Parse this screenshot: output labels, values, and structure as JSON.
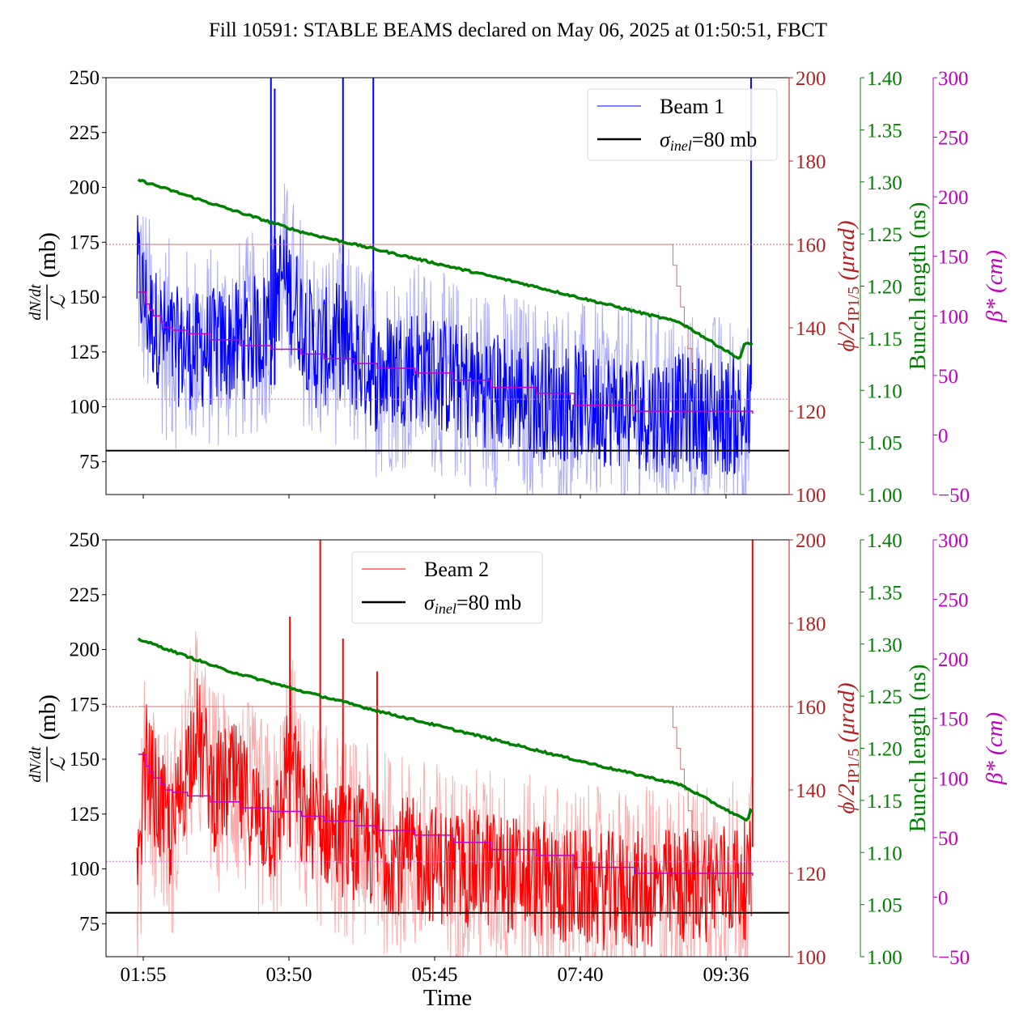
{
  "chart_data": {
    "type": "line",
    "title": "Fill 10591: STABLE BEAMS declared on May 06, 2025 at 01:50:51, FBCT",
    "xlabel": "Time",
    "x_ticks": [
      "01:55",
      "03:50",
      "05:45",
      "07:40",
      "09:36"
    ],
    "x_range_minutes": [
      1.5,
      10.4
    ],
    "data_span": {
      "start": "01:50",
      "end": "09:56"
    },
    "axes": {
      "left": {
        "label": "dN/dt / L (mb)",
        "label_num": "dN/dt",
        "label_den": "ℒ",
        "label_unit": "(mb)",
        "ylim": [
          60,
          250
        ],
        "ticks": [
          75,
          100,
          125,
          150,
          175,
          200,
          225,
          250
        ],
        "color": "#000000"
      },
      "crossing": {
        "label": "ϕ/2",
        "label_sub": "IP1/5",
        "label_unit": "(μrad)",
        "ylim": [
          100,
          200
        ],
        "ticks": [
          100,
          120,
          140,
          160,
          180,
          200
        ],
        "color": "#b22222"
      },
      "bunch": {
        "label": "Bunch length (ns)",
        "ylim": [
          1.0,
          1.4
        ],
        "ticks": [
          "1.00",
          "1.05",
          "1.10",
          "1.15",
          "1.20",
          "1.25",
          "1.30",
          "1.35",
          "1.40"
        ],
        "color": "#008000"
      },
      "beta": {
        "label": "β*",
        "label_unit": "(cm)",
        "ylim": [
          -50,
          300
        ],
        "ticks": [
          "−50",
          "0",
          "50",
          "100",
          "150",
          "200",
          "250",
          "300"
        ],
        "color": "#c000c0"
      }
    },
    "panels": [
      {
        "name": "beam1",
        "legend": {
          "series": "Beam 1",
          "reference": "σ",
          "reference_sub": "inel",
          "reference_value": "=80 mb",
          "position": "upper-right"
        },
        "series_color": "#0000ff",
        "series_light": "#aaaaff",
        "reference_sigma_inel_mb": 80,
        "mean_profile": {
          "t_hours": [
            1.85,
            2.0,
            2.3,
            2.6,
            3.2,
            3.5,
            3.75,
            4.2,
            4.5,
            5.0,
            5.5,
            6.0,
            6.5,
            7.0,
            7.5,
            8.0,
            8.5,
            9.0,
            9.5,
            9.9
          ],
          "values": [
            160,
            140,
            128,
            125,
            130,
            135,
            160,
            125,
            130,
            115,
            120,
            112,
            108,
            104,
            102,
            100,
            98,
            97,
            96,
            95
          ]
        },
        "spikes": [
          {
            "t": 3.6,
            "value": 250
          },
          {
            "t": 3.65,
            "value": 245
          },
          {
            "t": 4.55,
            "value": 250
          },
          {
            "t": 4.95,
            "value": 250
          },
          {
            "t": 9.93,
            "value": 250
          }
        ],
        "crossing_angle_urad": {
          "t": [
            1.85,
            8.85,
            8.9,
            8.95,
            9.0,
            9.05,
            9.1,
            9.15,
            9.2,
            9.95
          ],
          "values": [
            160,
            160,
            155,
            150,
            145,
            140,
            135,
            130,
            120,
            120
          ]
        },
        "crossing_reference_urad": 160,
        "beta_star_cm": {
          "t": [
            1.85,
            1.95,
            2.0,
            2.05,
            2.15,
            2.2,
            2.3,
            2.5,
            2.8,
            3.2,
            3.6,
            4.0,
            4.3,
            4.7,
            5.0,
            5.5,
            6.0,
            6.5,
            7.1,
            7.6,
            8.4,
            9.95
          ],
          "values": [
            120,
            110,
            105,
            100,
            95,
            90,
            88,
            85,
            80,
            75,
            72,
            68,
            64,
            60,
            56,
            52,
            46,
            40,
            35,
            25,
            20,
            18
          ]
        },
        "beta_reference_cm": 30,
        "bunch_length_ns": {
          "t": [
            1.85,
            3.0,
            4.0,
            5.0,
            6.0,
            7.0,
            8.0,
            9.0,
            9.78,
            9.85,
            9.95
          ],
          "values": [
            1.302,
            1.275,
            1.252,
            1.235,
            1.218,
            1.201,
            1.183,
            1.165,
            1.13,
            1.145,
            1.145
          ]
        }
      },
      {
        "name": "beam2",
        "legend": {
          "series": "Beam 2",
          "reference": "σ",
          "reference_sub": "inel",
          "reference_value": "=80 mb",
          "position": "upper-center"
        },
        "series_color": "#ff0000",
        "series_light": "#ffaaaa",
        "reference_sigma_inel_mb": 80,
        "mean_profile": {
          "t_hours": [
            1.85,
            1.95,
            2.1,
            2.3,
            2.6,
            2.85,
            3.1,
            3.4,
            3.7,
            3.85,
            4.0,
            4.5,
            5.0,
            5.5,
            6.0,
            6.5,
            7.0,
            7.5,
            8.0,
            8.5,
            9.0,
            9.5,
            9.9
          ],
          "values": [
            90,
            150,
            130,
            115,
            165,
            135,
            140,
            125,
            118,
            160,
            125,
            115,
            108,
            105,
            100,
            100,
            96,
            92,
            90,
            90,
            92,
            95,
            95
          ]
        },
        "spikes": [
          {
            "t": 3.85,
            "value": 215
          },
          {
            "t": 4.25,
            "value": 250
          },
          {
            "t": 4.55,
            "value": 205
          },
          {
            "t": 5.0,
            "value": 190
          },
          {
            "t": 9.95,
            "value": 250
          }
        ],
        "crossing_angle_urad": {
          "t": [
            1.85,
            8.85,
            8.9,
            8.95,
            9.0,
            9.05,
            9.1,
            9.15,
            9.2,
            9.95
          ],
          "values": [
            160,
            160,
            155,
            150,
            145,
            140,
            135,
            130,
            120,
            120
          ]
        },
        "crossing_reference_urad": 160,
        "beta_star_cm": {
          "t": [
            1.85,
            1.95,
            2.0,
            2.05,
            2.15,
            2.2,
            2.3,
            2.5,
            2.8,
            3.2,
            3.6,
            4.0,
            4.3,
            4.7,
            5.0,
            5.5,
            6.0,
            6.5,
            7.1,
            7.6,
            8.4,
            9.95
          ],
          "values": [
            120,
            110,
            105,
            100,
            95,
            90,
            88,
            85,
            80,
            75,
            72,
            68,
            64,
            60,
            56,
            52,
            46,
            40,
            35,
            25,
            20,
            18
          ]
        },
        "beta_reference_cm": 30,
        "bunch_length_ns": {
          "t": [
            1.85,
            3.0,
            4.0,
            5.0,
            6.0,
            7.0,
            8.0,
            9.0,
            9.88,
            9.92,
            9.95
          ],
          "values": [
            1.305,
            1.275,
            1.255,
            1.236,
            1.218,
            1.2,
            1.182,
            1.165,
            1.13,
            1.14,
            1.14
          ]
        }
      }
    ]
  }
}
